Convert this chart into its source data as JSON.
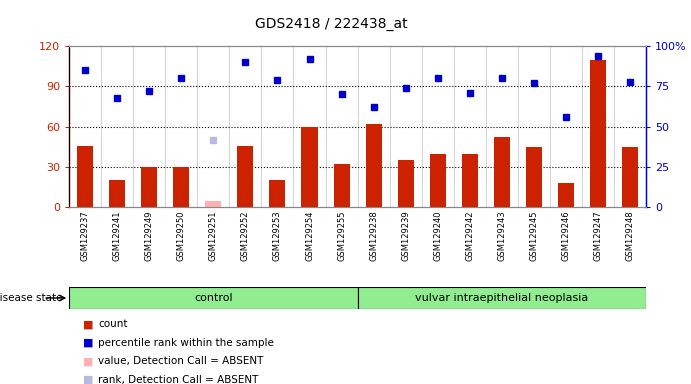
{
  "title": "GDS2418 / 222438_at",
  "samples": [
    "GSM129237",
    "GSM129241",
    "GSM129249",
    "GSM129250",
    "GSM129251",
    "GSM129252",
    "GSM129253",
    "GSM129254",
    "GSM129255",
    "GSM129238",
    "GSM129239",
    "GSM129240",
    "GSM129242",
    "GSM129243",
    "GSM129245",
    "GSM129246",
    "GSM129247",
    "GSM129248"
  ],
  "bar_values": [
    46,
    20,
    30,
    30,
    5,
    46,
    20,
    60,
    32,
    62,
    35,
    40,
    40,
    52,
    45,
    18,
    110,
    45
  ],
  "bar_colors": [
    "#cc2200",
    "#cc2200",
    "#cc2200",
    "#cc2200",
    "#ffb0b0",
    "#cc2200",
    "#cc2200",
    "#cc2200",
    "#cc2200",
    "#cc2200",
    "#cc2200",
    "#cc2200",
    "#cc2200",
    "#cc2200",
    "#cc2200",
    "#cc2200",
    "#cc2200",
    "#cc2200"
  ],
  "rank_values": [
    85,
    68,
    72,
    80,
    42,
    90,
    79,
    92,
    70,
    62,
    74,
    80,
    71,
    80,
    77,
    56,
    94,
    78
  ],
  "absent_indices": [
    4
  ],
  "control_label": "control",
  "disease_label": "vulvar intraepithelial neoplasia",
  "disease_state_label": "disease state",
  "n_control": 9,
  "n_disease": 9,
  "ylim_left": [
    0,
    120
  ],
  "ylim_right": [
    0,
    100
  ],
  "yticks_left": [
    0,
    30,
    60,
    90,
    120
  ],
  "yticks_right": [
    0,
    25,
    50,
    75,
    100
  ],
  "ytick_labels_left": [
    "0",
    "30",
    "60",
    "90",
    "120"
  ],
  "ytick_labels_right": [
    "0",
    "25",
    "50",
    "75",
    "100%"
  ],
  "left_axis_color": "#cc2200",
  "right_axis_color": "#0000cc",
  "legend_items": [
    {
      "label": "count",
      "color": "#cc2200"
    },
    {
      "label": "percentile rank within the sample",
      "color": "#0000cc"
    },
    {
      "label": "value, Detection Call = ABSENT",
      "color": "#ffb0b0"
    },
    {
      "label": "rank, Detection Call = ABSENT",
      "color": "#b8b8e0"
    }
  ],
  "bg_plot": "#ffffff",
  "green_band": "#90ee90",
  "bar_width": 0.5,
  "grid_color": "black",
  "col_sep_color": "#c0c0c0"
}
